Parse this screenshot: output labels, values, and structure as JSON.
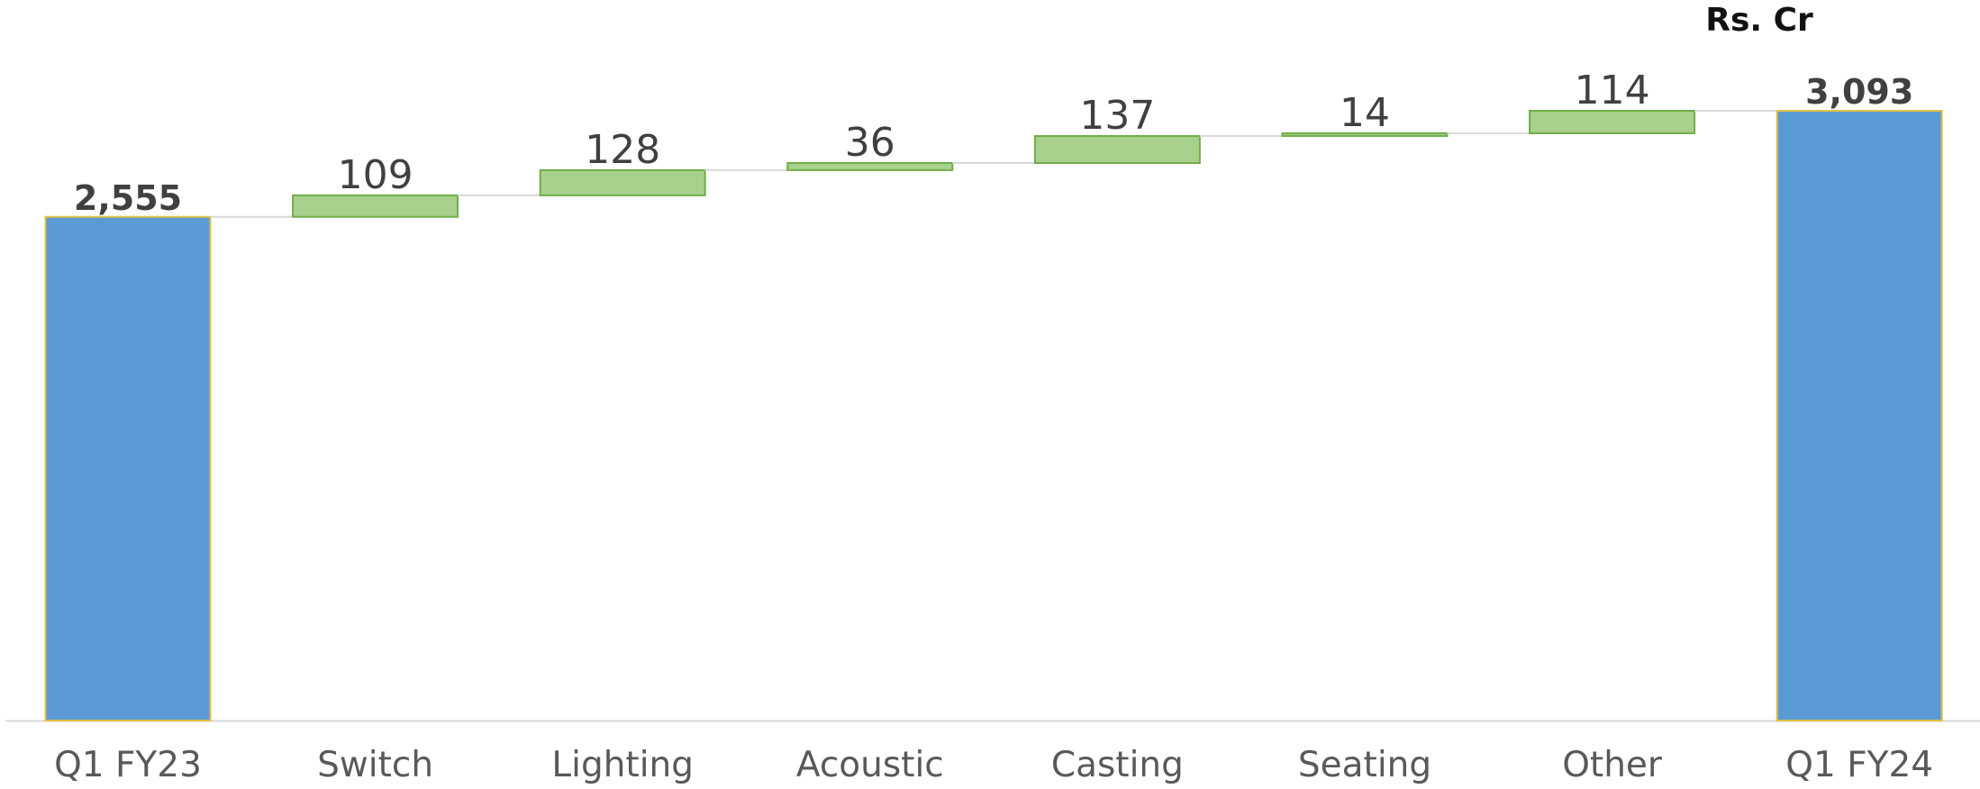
{
  "chart_data": {
    "type": "waterfall",
    "unit_label": "Rs. Cr",
    "categories": [
      "Q1 FY23",
      "Switch",
      "Lighting",
      "Acoustic",
      "Casting",
      "Seating",
      "Other",
      "Q1 FY24"
    ],
    "values": [
      2555,
      109,
      128,
      36,
      137,
      14,
      114,
      3093
    ],
    "value_labels": [
      "2,555",
      "109",
      "128",
      "36",
      "137",
      "14",
      "114",
      "3,093"
    ],
    "total_color": "#5b9bd5",
    "total_edge": "#e2c044",
    "increase_color": "#a9d18e",
    "increase_edge": "#70ad47"
  }
}
